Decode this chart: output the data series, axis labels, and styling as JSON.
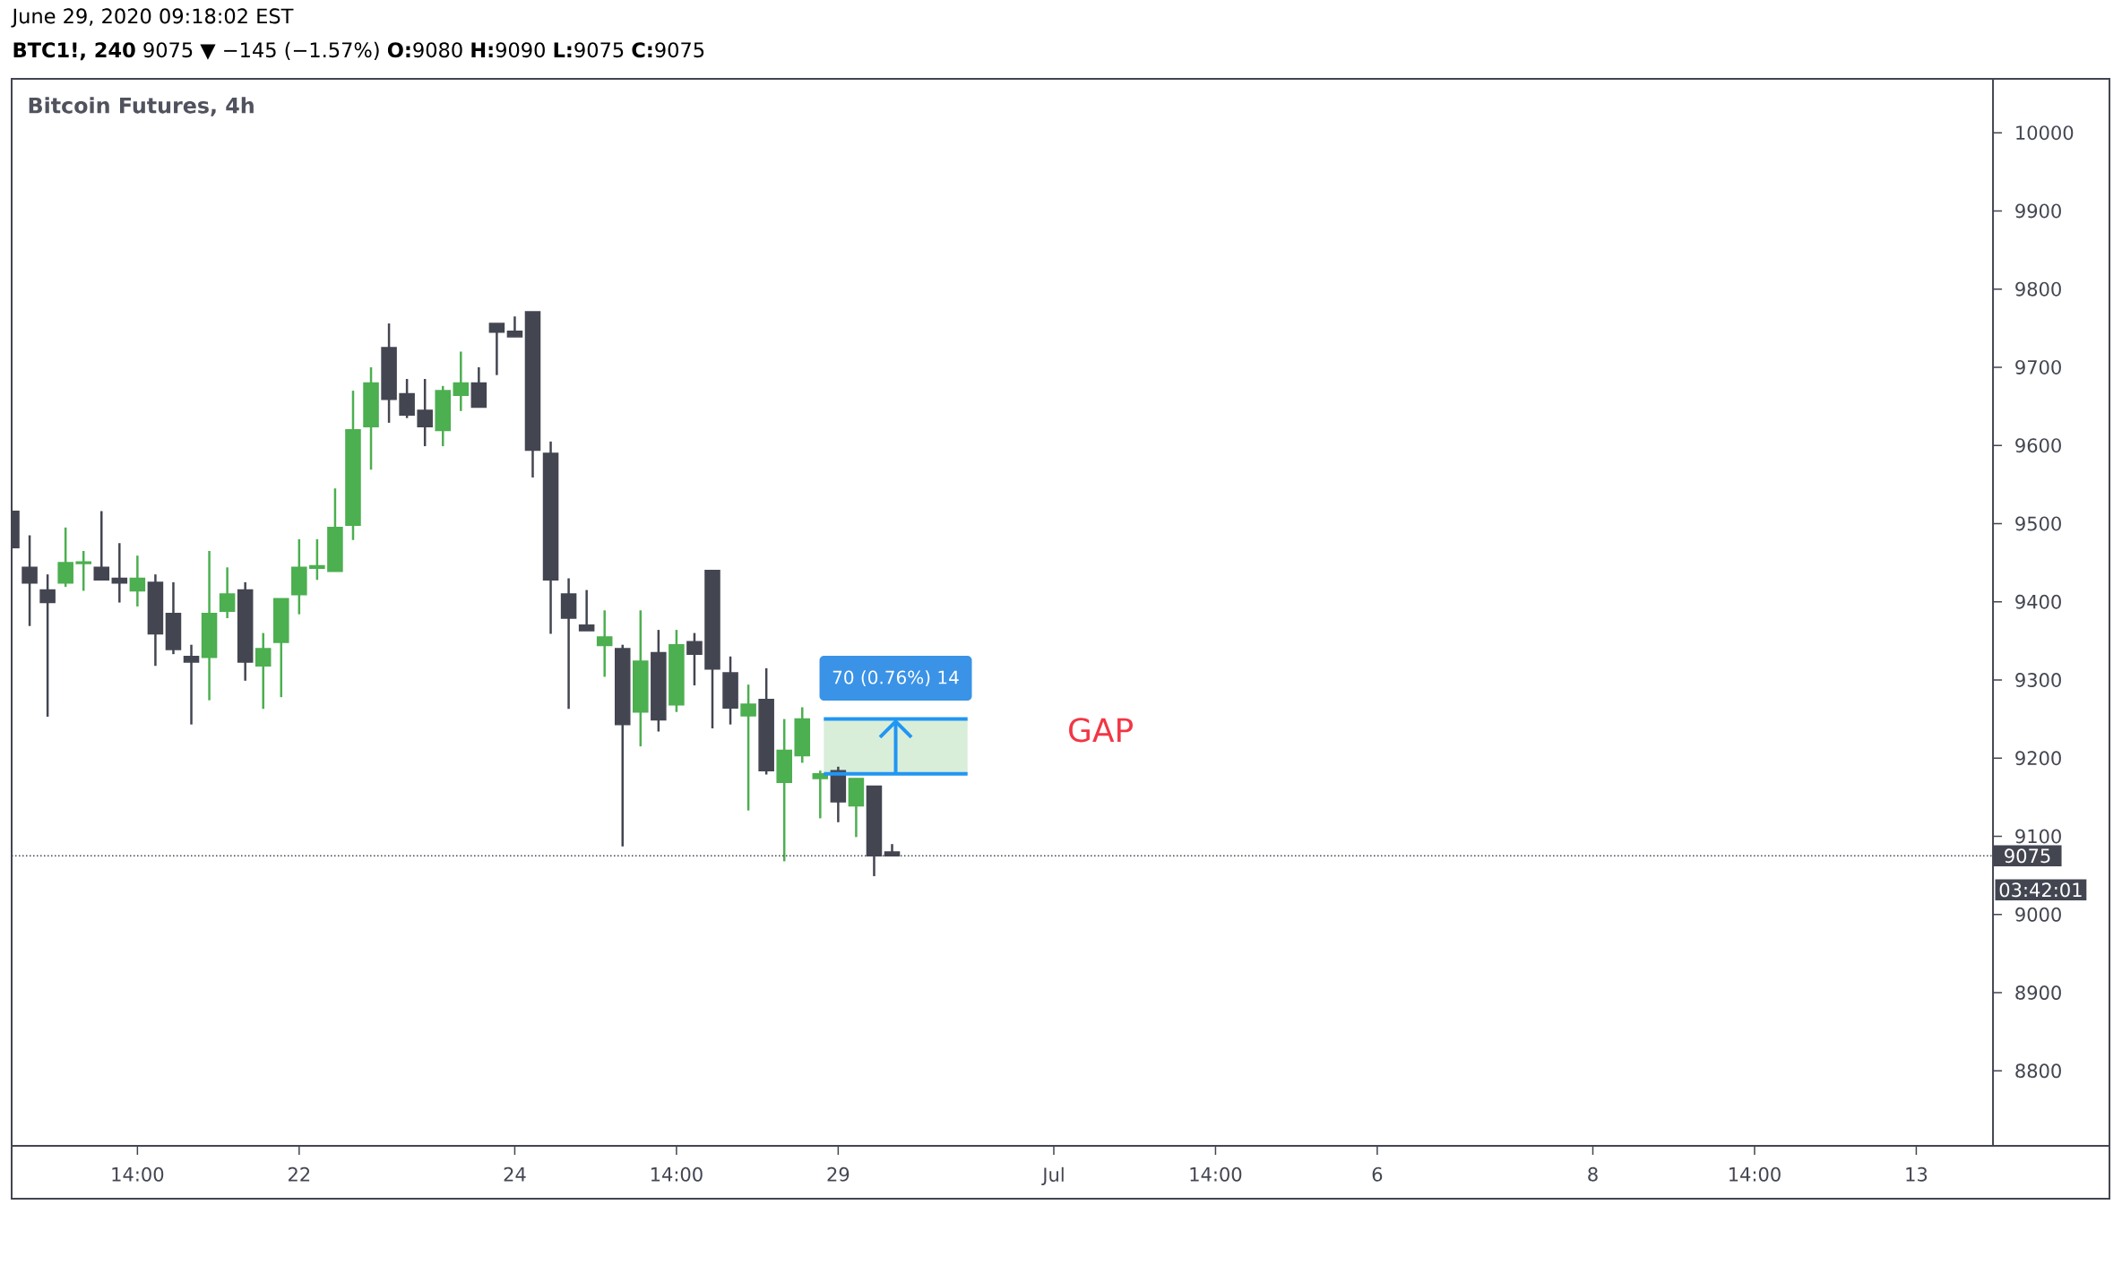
{
  "chart_data": {
    "type": "candlestick",
    "title": "Bitcoin Futures, 4h",
    "subtitle": "**BTC1!, 240** 9075 ▼ −145 (−1.57%) **O:**9080 **H:**9090 **L:**9075 **C:**9075",
    "categories": [
      null,
      null,
      null,
      null,
      null,
      null,
      null,
      "14:00",
      null,
      null,
      null,
      null,
      null,
      null,
      null,
      null,
      "22",
      null,
      null,
      null,
      null,
      null,
      null,
      null,
      null,
      null,
      null,
      null,
      "24",
      null,
      null,
      null,
      null,
      null,
      null,
      null,
      null,
      "14:00",
      null,
      null,
      null,
      null,
      null,
      null,
      null,
      null,
      "29",
      null,
      null,
      null,
      null,
      null,
      null,
      null,
      null,
      null,
      null,
      null,
      "Jul",
      null,
      null,
      null,
      null,
      null,
      null,
      null,
      null,
      "14:00",
      null,
      null,
      null,
      null,
      null,
      null,
      null,
      null,
      "6",
      null,
      null,
      null,
      null,
      null,
      null,
      null,
      null,
      null,
      null,
      null,
      "8",
      null,
      null,
      null,
      null,
      null,
      null,
      null,
      null,
      "14:00",
      null,
      null,
      null,
      null,
      null,
      null,
      null,
      null,
      "13",
      null,
      null,
      null,
      null
    ],
    "ohlc": [
      [
        9516,
        9516,
        9469,
        9469
      ],
      [
        9444,
        9485,
        9369,
        9424
      ],
      [
        9415,
        9435,
        9253,
        9399
      ],
      [
        9424,
        9495,
        9419,
        9450
      ],
      [
        9449,
        9465,
        9414,
        9451
      ],
      [
        9444,
        9516,
        9428,
        9428
      ],
      [
        9430,
        9475,
        9399,
        9424
      ],
      [
        9414,
        9459,
        9394,
        9430
      ],
      [
        9425,
        9435,
        9318,
        9359
      ],
      [
        9385,
        9425,
        9333,
        9339
      ],
      [
        9330,
        9345,
        9243,
        9323
      ],
      [
        9329,
        9465,
        9274,
        9385
      ],
      [
        9388,
        9444,
        9379,
        9410
      ],
      [
        9415,
        9425,
        9299,
        9323
      ],
      [
        9318,
        9360,
        9263,
        9340
      ],
      [
        9348,
        9404,
        9278,
        9404
      ],
      [
        9409,
        9480,
        9384,
        9444
      ],
      [
        9443,
        9480,
        9428,
        9446
      ],
      [
        9439,
        9545,
        9439,
        9495
      ],
      [
        9498,
        9670,
        9479,
        9620
      ],
      [
        9624,
        9700,
        9569,
        9680
      ],
      [
        9725,
        9756,
        9629,
        9659
      ],
      [
        9666,
        9685,
        9635,
        9639
      ],
      [
        9645,
        9685,
        9599,
        9624
      ],
      [
        9619,
        9676,
        9599,
        9670
      ],
      [
        9664,
        9720,
        9644,
        9680
      ],
      [
        9680,
        9700,
        9649,
        9649
      ],
      [
        9756,
        9756,
        9690,
        9745
      ],
      [
        9746,
        9765,
        9739,
        9739
      ],
      [
        9771,
        9771,
        9559,
        9594
      ],
      [
        9590,
        9605,
        9359,
        9428
      ],
      [
        9410,
        9430,
        9263,
        9379
      ],
      [
        9370,
        9415,
        9363,
        9363
      ],
      [
        9344,
        9389,
        9304,
        9355
      ],
      [
        9340,
        9345,
        9087,
        9243
      ],
      [
        9259,
        9389,
        9215,
        9324
      ],
      [
        9335,
        9364,
        9234,
        9249
      ],
      [
        9268,
        9364,
        9259,
        9345
      ],
      [
        9349,
        9360,
        9293,
        9333
      ],
      [
        9440,
        9440,
        9238,
        9314
      ],
      [
        9309,
        9330,
        9243,
        9264
      ],
      [
        9254,
        9294,
        9133,
        9269
      ],
      [
        9275,
        9315,
        9179,
        9184
      ],
      [
        9169,
        9250,
        9068,
        9210
      ],
      [
        9203,
        9265,
        9194,
        9250
      ],
      [
        9174,
        9184,
        9123,
        9180
      ],
      [
        9184,
        9189,
        9118,
        9144
      ],
      [
        9139,
        9174,
        9099,
        9174
      ],
      [
        9164,
        9164,
        9049,
        9075
      ],
      [
        9080,
        9090,
        9075,
        9075
      ],
      null,
      null,
      null,
      null,
      null,
      null,
      null,
      null,
      null,
      null,
      null,
      null,
      null,
      null,
      null,
      null,
      null,
      null,
      null,
      null,
      null,
      null,
      null,
      null,
      null,
      null,
      null,
      null,
      null,
      null,
      null,
      null,
      null,
      null,
      null,
      null,
      null,
      null,
      null,
      null,
      null,
      null,
      null,
      null,
      null,
      null,
      null,
      null,
      null,
      null,
      null,
      null,
      null,
      null,
      null,
      null,
      null,
      null,
      null,
      null,
      null
    ],
    "colors": [
      "#434651",
      "#434651",
      "#434651",
      "#4caf50",
      "#4caf50",
      "#434651",
      "#434651",
      "#4caf50",
      "#434651",
      "#434651",
      "#434651",
      "#4caf50",
      "#4caf50",
      "#434651",
      "#4caf50",
      "#4caf50",
      "#4caf50",
      "#4caf50",
      "#4caf50",
      "#4caf50",
      "#4caf50",
      "#434651",
      "#434651",
      "#434651",
      "#4caf50",
      "#4caf50",
      "#434651",
      "#434651",
      "#434651",
      "#434651",
      "#434651",
      "#434651",
      "#434651",
      "#4caf50",
      "#434651",
      "#4caf50",
      "#434651",
      "#4caf50",
      "#434651",
      "#434651",
      "#434651",
      "#4caf50",
      "#434651",
      "#4caf50",
      "#4caf50",
      "#4caf50",
      "#434651",
      "#4caf50",
      "#434651",
      "#434651",
      null,
      null,
      null,
      null,
      null,
      null,
      null,
      null,
      null,
      null,
      null,
      null,
      null,
      null,
      null,
      null,
      null,
      null,
      null,
      null,
      null,
      null,
      null,
      null,
      null,
      null,
      null,
      null,
      null,
      null,
      null,
      null,
      null,
      null,
      null,
      null,
      null,
      null,
      null,
      null,
      null,
      null,
      null,
      null,
      null,
      null,
      null,
      null,
      null,
      null,
      null,
      null,
      null,
      null,
      null,
      null,
      null,
      null,
      null,
      null,
      null
    ],
    "ylim": [
      8704,
      10069
    ],
    "yticks": [
      8800,
      8900,
      9000,
      9100,
      9200,
      9300,
      9400,
      9500,
      9600,
      9700,
      9800,
      9900,
      10000
    ],
    "ref_lines": [
      {
        "axis": "y",
        "value": 9075,
        "label": "9075",
        "color": "#434651",
        "line_style": "dotted"
      }
    ],
    "bands": [
      {
        "axis": "y",
        "from": 9180,
        "to": 9250,
        "label": "70 (0.76%) 14",
        "color": "#d9eed9"
      }
    ],
    "annotations": [
      "June 29, 2020 09:18:02 EST",
      "GAP",
      "03:42:01"
    ]
  }
}
